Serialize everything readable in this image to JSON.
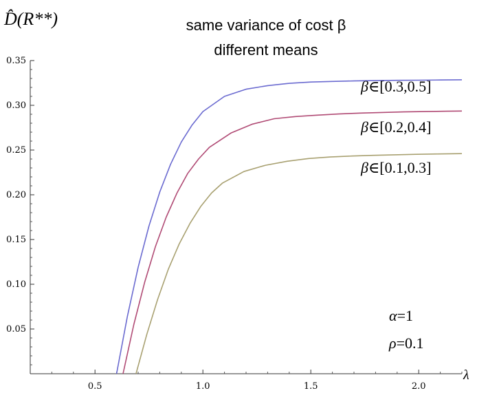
{
  "chart_data": {
    "type": "line",
    "title_lines": [
      "same variance of cost β",
      "different means"
    ],
    "ylabel": "D̂(R**)",
    "xlabel": "λ",
    "xlim": [
      0.2,
      2.2
    ],
    "ylim": [
      0.0,
      0.35
    ],
    "xticks": [
      0.5,
      1.0,
      1.5,
      2.0
    ],
    "xtick_labels": [
      "0.5",
      "1.0",
      "1.5",
      "2.0"
    ],
    "yticks": [
      0.05,
      0.1,
      0.15,
      0.2,
      0.25,
      0.3,
      0.35
    ],
    "ytick_labels": [
      "0.05",
      "0.10",
      "0.15",
      "0.20",
      "0.25",
      "0.30",
      "0.35"
    ],
    "grid": false,
    "series": [
      {
        "name": "β∈[0.3,0.5]",
        "color": "#6a6ad0",
        "x": [
          0.6,
          0.65,
          0.7,
          0.75,
          0.8,
          0.85,
          0.9,
          0.95,
          1.0,
          1.1,
          1.2,
          1.3,
          1.4,
          1.5,
          1.6,
          1.7,
          1.8,
          1.9,
          2.0,
          2.1,
          2.2
        ],
        "y": [
          0.0,
          0.064,
          0.119,
          0.165,
          0.203,
          0.234,
          0.259,
          0.278,
          0.293,
          0.31,
          0.318,
          0.322,
          0.3245,
          0.326,
          0.3267,
          0.3272,
          0.3276,
          0.3279,
          0.3281,
          0.3283,
          0.3285
        ]
      },
      {
        "name": "β∈[0.2,0.4]",
        "color": "#b04a74",
        "x": [
          0.63,
          0.68,
          0.73,
          0.78,
          0.83,
          0.88,
          0.93,
          0.98,
          1.03,
          1.13,
          1.23,
          1.33,
          1.43,
          1.53,
          1.63,
          1.73,
          1.83,
          1.93,
          2.03,
          2.13,
          2.2
        ],
        "y": [
          0.0,
          0.055,
          0.102,
          0.142,
          0.175,
          0.202,
          0.224,
          0.24,
          0.253,
          0.269,
          0.279,
          0.285,
          0.2875,
          0.289,
          0.2903,
          0.2913,
          0.292,
          0.2926,
          0.293,
          0.2934,
          0.2936
        ]
      },
      {
        "name": "β∈[0.1,0.3]",
        "color": "#a8a070",
        "x": [
          0.69,
          0.74,
          0.79,
          0.84,
          0.89,
          0.94,
          0.99,
          1.04,
          1.09,
          1.19,
          1.29,
          1.39,
          1.49,
          1.59,
          1.69,
          1.79,
          1.89,
          1.99,
          2.09,
          2.2
        ],
        "y": [
          0.0,
          0.044,
          0.083,
          0.117,
          0.145,
          0.168,
          0.187,
          0.202,
          0.213,
          0.226,
          0.233,
          0.2375,
          0.2405,
          0.2422,
          0.2433,
          0.2441,
          0.2447,
          0.2452,
          0.2456,
          0.246
        ]
      }
    ],
    "curve_labels": [
      {
        "prefix": "β",
        "text": "∈[0.3,0.5]"
      },
      {
        "prefix": "β",
        "text": "∈[0.2,0.4]"
      },
      {
        "prefix": "β",
        "text": "∈[0.1,0.3]"
      }
    ],
    "annotations": [
      {
        "symbol": "α",
        "text": "=1"
      },
      {
        "symbol": "ρ",
        "text": "=0.1"
      }
    ]
  }
}
